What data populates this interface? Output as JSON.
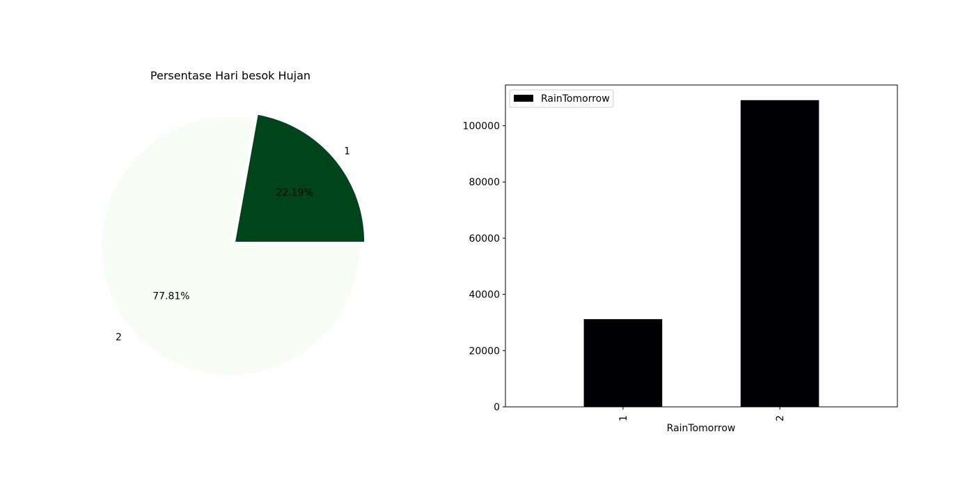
{
  "chart_data": [
    {
      "type": "pie",
      "title": "Persentase Hari besok Hujan",
      "labels": [
        "1",
        "2"
      ],
      "values": [
        22.19,
        77.81
      ],
      "pct_labels": [
        "22.19%",
        "77.81%"
      ],
      "explode": [
        0.05,
        0
      ],
      "colors": [
        "#00441b",
        "#f7fcf5"
      ],
      "colormap": "Greens"
    },
    {
      "type": "bar",
      "categories": [
        "1",
        "2"
      ],
      "series": [
        {
          "name": "RainTomorrow",
          "values": [
            31200,
            109100
          ],
          "color": "#000004"
        }
      ],
      "xlabel": "RainTomorrow",
      "ylabel": "",
      "ylim": [
        0,
        114500
      ],
      "yticks": [
        0,
        20000,
        40000,
        60000,
        80000,
        100000
      ],
      "ytick_labels": [
        "0",
        "20000",
        "40000",
        "60000",
        "80000",
        "100000"
      ],
      "grid": false,
      "legend": "upper left"
    }
  ]
}
